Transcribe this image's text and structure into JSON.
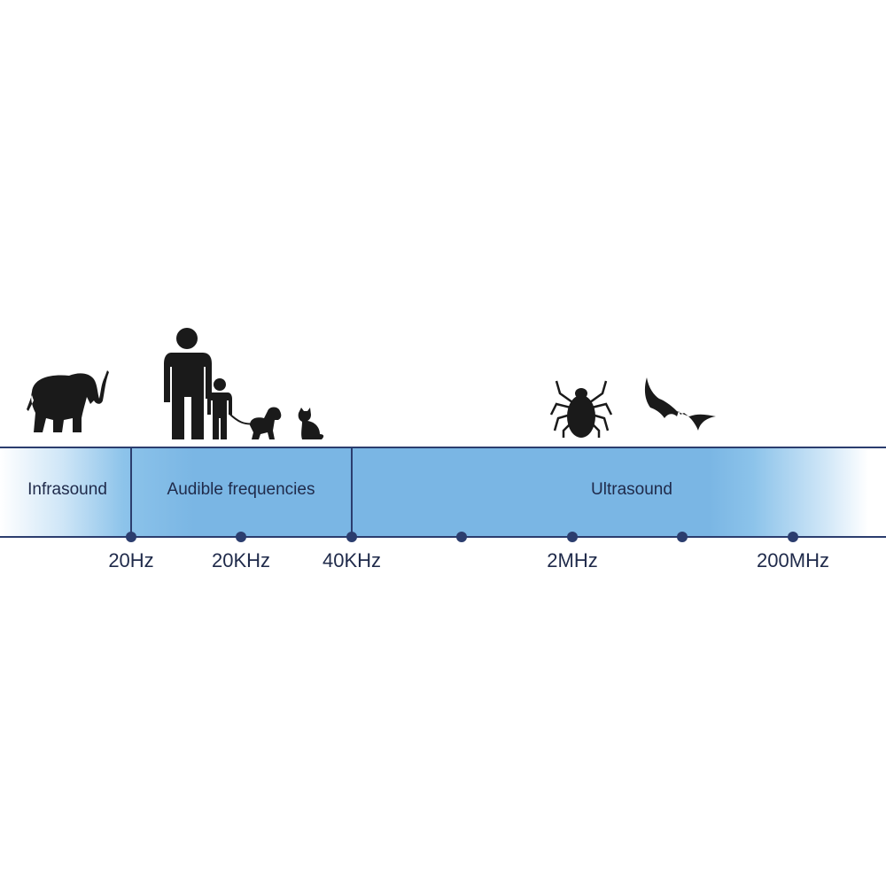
{
  "regions": [
    {
      "label": "Infrasound"
    },
    {
      "label": "Audible frequencies"
    },
    {
      "label": "Ultrasound"
    }
  ],
  "ticks": [
    "20Hz",
    "",
    "20KHz",
    "",
    "40KHz",
    "",
    "",
    "2MHz",
    "",
    "200MHz"
  ],
  "tick_labels": {
    "t20hz": "20Hz",
    "t20khz": "20KHz",
    "t40khz": "40KHz",
    "t2mhz": "2MHz",
    "t200mhz": "200MHz"
  },
  "icons": [
    "elephant-icon",
    "man-icon",
    "child-icon",
    "dog-icon",
    "cat-icon",
    "tick-icon",
    "bat-icon"
  ],
  "colors": {
    "band": "#7ab6e4",
    "line": "#2b3d6e",
    "silhouette": "#1a1a1a"
  }
}
